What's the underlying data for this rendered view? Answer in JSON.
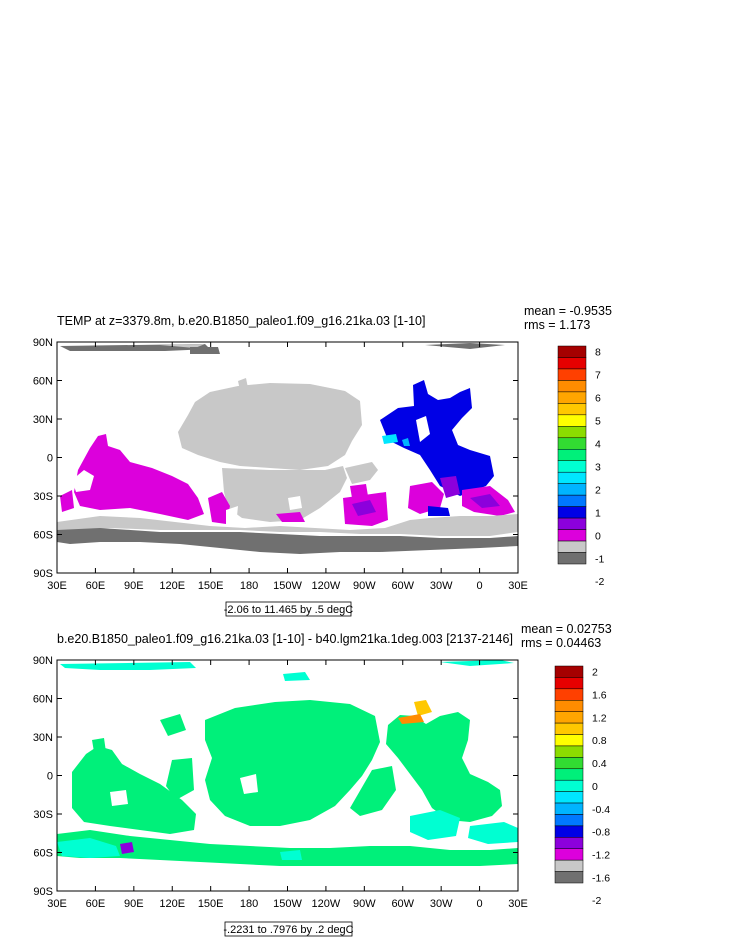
{
  "chart_data": [
    {
      "type": "heatmap",
      "title": "TEMP at z=3379.8m, b.e20.B1850_paleo1.f09_g16.21ka.03 [1-10]",
      "stats": [
        "mean = -0.9535",
        "rms = 1.173"
      ],
      "contour_info": "-2.06 to 11.465 by .5 degC",
      "x_ticks": [
        "30E",
        "60E",
        "90E",
        "120E",
        "150E",
        "180",
        "150W",
        "120W",
        "90W",
        "60W",
        "30W",
        "0",
        "30E"
      ],
      "y_ticks": [
        "90N",
        "60N",
        "30N",
        "0",
        "30S",
        "60S",
        "90S"
      ],
      "colorbar": {
        "labels": [
          "8",
          "7",
          "6",
          "5",
          "4",
          "3",
          "2",
          "1",
          "0",
          "-1",
          "-2"
        ],
        "colors": [
          "#a50000",
          "#e60000",
          "#ff4000",
          "#ff8c00",
          "#ffa500",
          "#ffc800",
          "#ffff00",
          "#8cdc00",
          "#32dc32",
          "#00f07a",
          "#00ffd2",
          "#00e6ff",
          "#00b4ff",
          "#0078ff",
          "#0000e6",
          "#8c00dc",
          "#dc00dc",
          "#c8c8c8",
          "#707070"
        ]
      }
    },
    {
      "type": "heatmap",
      "title": "b.e20.B1850_paleo1.f09_g16.21ka.03 [1-10] - b40.lgm21ka.1deg.003 [2137-2146]",
      "stats": [
        "mean = 0.02753",
        "rms = 0.04463"
      ],
      "contour_info": "-.2231 to .7976 by .2 degC",
      "x_ticks": [
        "30E",
        "60E",
        "90E",
        "120E",
        "150E",
        "180",
        "150W",
        "120W",
        "90W",
        "60W",
        "30W",
        "0",
        "30E"
      ],
      "y_ticks": [
        "90N",
        "60N",
        "30N",
        "0",
        "30S",
        "60S",
        "90S"
      ],
      "colorbar": {
        "labels": [
          "2",
          "1.6",
          "1.2",
          "0.8",
          "0.4",
          "0",
          "-0.4",
          "-0.8",
          "-1.2",
          "-1.6",
          "-2"
        ],
        "colors": [
          "#a50000",
          "#e60000",
          "#ff4000",
          "#ff8c00",
          "#ffa500",
          "#ffc800",
          "#ffff00",
          "#8cdc00",
          "#32dc32",
          "#00f07a",
          "#00ffd2",
          "#00e6ff",
          "#00b4ff",
          "#0078ff",
          "#0000e6",
          "#8c00dc",
          "#dc00dc",
          "#c8c8c8",
          "#707070"
        ]
      }
    }
  ]
}
